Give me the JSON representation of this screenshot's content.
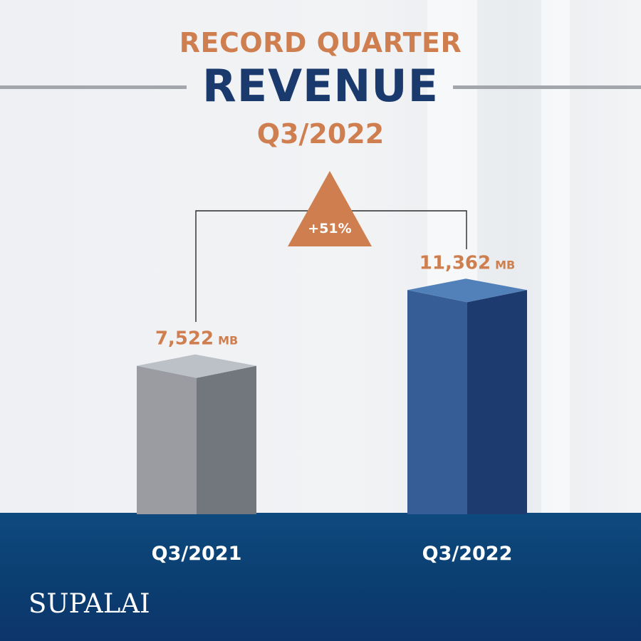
{
  "header": {
    "line1": "RECORD QUARTER",
    "line2": "REVENUE",
    "line3": "Q3/2022"
  },
  "brand": {
    "logo_text": "SUPALAI"
  },
  "colors": {
    "accent_orange": "#cf7f4f",
    "navy": "#1a3a6e",
    "q3_2021_front": "#9a9ca1",
    "q3_2021_side": "#72767d",
    "q3_2021_top": "#bcc1c8",
    "q3_2022_front": "#365d96",
    "q3_2022_side": "#1d3b6e",
    "q3_2022_top": "#5280b9"
  },
  "chart_data": {
    "type": "bar",
    "categories": [
      "Q3/2021",
      "Q3/2022"
    ],
    "values": [
      7522,
      11362
    ],
    "value_labels": [
      "7,522",
      "11,362"
    ],
    "unit": "MB",
    "change_label": "+51%",
    "title": "RECORD QUARTER REVENUE Q3/2022",
    "xlabel": "",
    "ylabel": "",
    "grid": false,
    "legend": "none"
  }
}
